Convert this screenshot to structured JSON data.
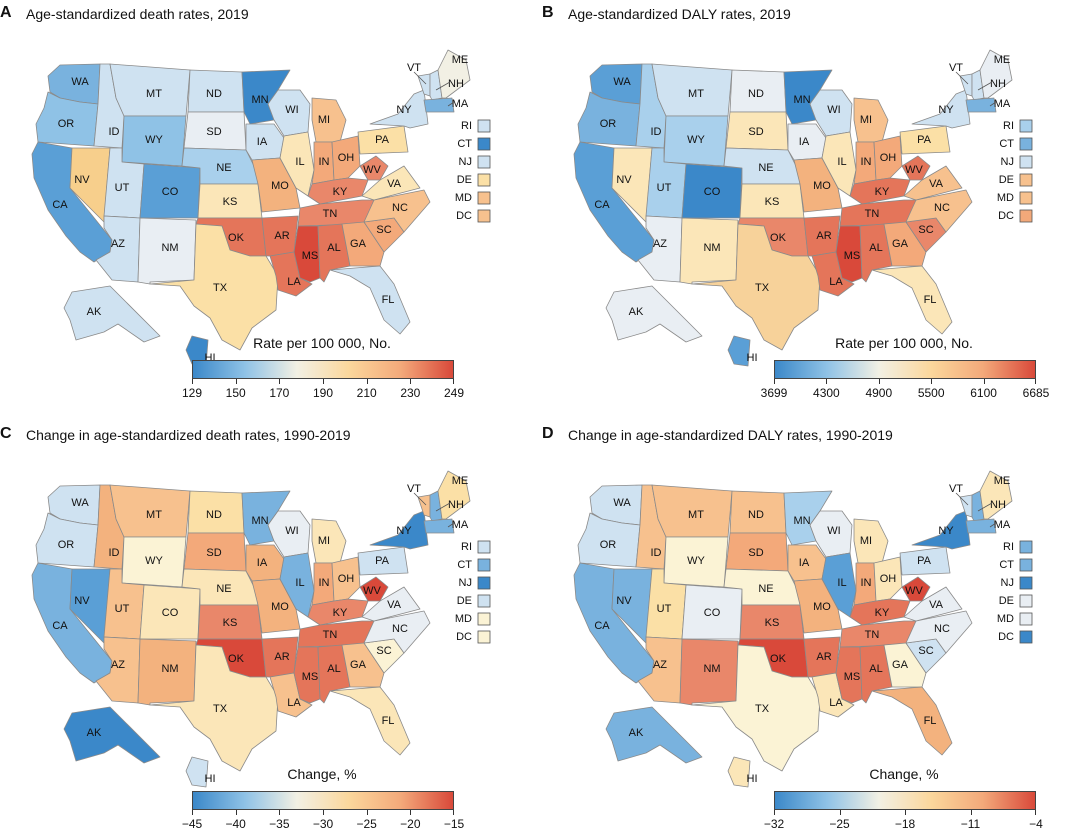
{
  "figure": {
    "panels": [
      {
        "id": "A",
        "letter": "A",
        "title": "Age-standardized death rates, 2019",
        "legend_title": "Rate per 100 000, No.",
        "ticks": [
          "129",
          "150",
          "170",
          "190",
          "210",
          "230",
          "249"
        ],
        "colors": {
          "WA": "#79b2de",
          "OR": "#8fc2e6",
          "CA": "#5a9fd6",
          "NV": "#f7cf8c",
          "ID": "#cfe2f1",
          "MT": "#cfe2f1",
          "WY": "#8fc2e6",
          "UT": "#cfe2f1",
          "AZ": "#cfe2f1",
          "CO": "#5a9fd6",
          "NM": "#e9eef3",
          "ND": "#cfe2f1",
          "SD": "#e9eef3",
          "NE": "#a9d0ec",
          "KS": "#fbe6b8",
          "OK": "#e4755a",
          "TX": "#fbe0a6",
          "MN": "#3b88c9",
          "IA": "#cfe2f1",
          "MO": "#f3b27e",
          "AR": "#e4755a",
          "LA": "#e4755a",
          "WI": "#cfe2f1",
          "IL": "#fbe6b8",
          "MI": "#f7c18e",
          "IN": "#f3a97a",
          "OH": "#f3a97a",
          "KY": "#e9876a",
          "TN": "#e9876a",
          "MS": "#d9493a",
          "AL": "#e4755a",
          "GA": "#f3a97a",
          "FL": "#cfe2f1",
          "SC": "#f3a97a",
          "NC": "#f7c18e",
          "VA": "#fbe6b8",
          "WV": "#e9876a",
          "PA": "#fbe0a6",
          "NY": "#cfe2f1",
          "VT": "#cfe2f1",
          "NH": "#cfe2f1",
          "ME": "#f2f0e4",
          "MA": "#79b2de",
          "AK": "#cfe2f1",
          "HI": "#3b88c9",
          "RI": "#cfe2f1",
          "CT": "#3b88c9",
          "NJ": "#cfe2f1",
          "DE": "#fbe0a6",
          "MD": "#f7c18e",
          "DC": "#f7c18e"
        }
      },
      {
        "id": "B",
        "letter": "B",
        "title": "Age-standardized DALY rates, 2019",
        "legend_title": "Rate per 100 000, No.",
        "ticks": [
          "3699",
          "4300",
          "4900",
          "5500",
          "6100",
          "6685"
        ],
        "colors": {
          "WA": "#5a9fd6",
          "OR": "#79b2de",
          "CA": "#5a9fd6",
          "NV": "#fbe6b8",
          "ID": "#a9d0ec",
          "MT": "#cfe2f1",
          "WY": "#a9d0ec",
          "UT": "#a9d0ec",
          "AZ": "#e9eef3",
          "CO": "#3b88c9",
          "NM": "#fbe6b8",
          "ND": "#e9eef3",
          "SD": "#fbe6b8",
          "NE": "#cfe2f1",
          "KS": "#fbe6b8",
          "OK": "#e9876a",
          "TX": "#f7d29a",
          "MN": "#3b88c9",
          "IA": "#e9eef3",
          "MO": "#f3b27e",
          "AR": "#e4755a",
          "LA": "#e4755a",
          "WI": "#cfe2f1",
          "IL": "#fbe6b8",
          "MI": "#f7c18e",
          "IN": "#f3a97a",
          "OH": "#f3a97a",
          "KY": "#e4755a",
          "TN": "#e4755a",
          "MS": "#d9493a",
          "AL": "#e4755a",
          "GA": "#f3a97a",
          "FL": "#fbe6b8",
          "SC": "#e9876a",
          "NC": "#f7c18e",
          "VA": "#f7c18e",
          "WV": "#e4755a",
          "PA": "#fbe0a6",
          "NY": "#cfe2f1",
          "VT": "#cfe2f1",
          "NH": "#cfe2f1",
          "ME": "#e9eef3",
          "MA": "#79b2de",
          "AK": "#e9eef3",
          "HI": "#5a9fd6",
          "RI": "#a9d0ec",
          "CT": "#79b2de",
          "NJ": "#cfe2f1",
          "DE": "#f7c18e",
          "MD": "#f7c18e",
          "DC": "#f3a97a"
        }
      },
      {
        "id": "C",
        "letter": "C",
        "title": "Change in age-standardized death rates, 1990-2019",
        "legend_title": "Change, %",
        "ticks": [
          "−45",
          "−40",
          "−35",
          "−30",
          "−25",
          "−20",
          "−15"
        ],
        "colors": {
          "WA": "#cfe2f1",
          "OR": "#cfe2f1",
          "CA": "#79b2de",
          "NV": "#5a9fd6",
          "ID": "#f3b27e",
          "MT": "#f7c18e",
          "WY": "#fbf3d5",
          "UT": "#f7c18e",
          "AZ": "#f7c18e",
          "CO": "#fbe6b8",
          "NM": "#f3b27e",
          "ND": "#fbe0a6",
          "SD": "#f3a97a",
          "NE": "#fbe6b8",
          "KS": "#e9876a",
          "OK": "#d9493a",
          "TX": "#fbe6b8",
          "MN": "#79b2de",
          "IA": "#f3b27e",
          "MO": "#f3b27e",
          "AR": "#e4755a",
          "LA": "#f7c18e",
          "WI": "#e9eef3",
          "IL": "#79b2de",
          "MI": "#fbe6b8",
          "IN": "#f3a97a",
          "OH": "#f7c18e",
          "KY": "#e9876a",
          "TN": "#e4755a",
          "MS": "#e4755a",
          "AL": "#e4755a",
          "GA": "#f7c18e",
          "FL": "#fbe6b8",
          "SC": "#fbf3d5",
          "NC": "#e9eef3",
          "VA": "#e9eef3",
          "WV": "#d9493a",
          "PA": "#cfe2f1",
          "NY": "#3b88c9",
          "VT": "#f7c18e",
          "NH": "#79b2de",
          "ME": "#fbe0a6",
          "MA": "#79b2de",
          "AK": "#3b88c9",
          "HI": "#cfe2f1",
          "RI": "#cfe2f1",
          "CT": "#79b2de",
          "NJ": "#3b88c9",
          "DE": "#cfe2f1",
          "MD": "#fbf3d5",
          "DC": "#fbf3d5"
        }
      },
      {
        "id": "D",
        "letter": "D",
        "title": "Change in age-standardized DALY rates, 1990-2019",
        "legend_title": "Change, %",
        "ticks": [
          "−32",
          "−25",
          "−18",
          "−11",
          "−4"
        ],
        "colors": {
          "WA": "#cfe2f1",
          "OR": "#cfe2f1",
          "CA": "#79b2de",
          "NV": "#79b2de",
          "ID": "#f7c18e",
          "MT": "#f7c18e",
          "WY": "#fbf3d5",
          "UT": "#fbe0a6",
          "AZ": "#f7c18e",
          "CO": "#e9eef3",
          "NM": "#e9876a",
          "ND": "#f7c18e",
          "SD": "#f3a97a",
          "NE": "#fbf3d5",
          "KS": "#e9876a",
          "OK": "#d9493a",
          "TX": "#fbf3d5",
          "MN": "#a9d0ec",
          "IA": "#f7c18e",
          "MO": "#f3b27e",
          "AR": "#e4755a",
          "LA": "#fbe6b8",
          "WI": "#e9eef3",
          "IL": "#5a9fd6",
          "MI": "#fbe6b8",
          "IN": "#f3a97a",
          "OH": "#fbe6b8",
          "KY": "#e4755a",
          "TN": "#e9876a",
          "MS": "#e4755a",
          "AL": "#e4755a",
          "GA": "#fbf3d5",
          "FL": "#f3b27e",
          "SC": "#cfe2f1",
          "NC": "#e9eef3",
          "VA": "#e9eef3",
          "WV": "#d9493a",
          "PA": "#cfe2f1",
          "NY": "#3b88c9",
          "VT": "#cfe2f1",
          "NH": "#79b2de",
          "ME": "#fbe6b8",
          "MA": "#79b2de",
          "AK": "#79b2de",
          "HI": "#fbe6b8",
          "RI": "#79b2de",
          "CT": "#79b2de",
          "NJ": "#3b88c9",
          "DE": "#e9eef3",
          "MD": "#e9eef3",
          "DC": "#3b88c9"
        }
      }
    ],
    "colorbar_stops": [
      "#3b88c9",
      "#8fc2e6",
      "#f2f0e4",
      "#fbd79c",
      "#f3a97a",
      "#d9493a"
    ],
    "small_states": [
      "RI",
      "CT",
      "NJ",
      "DE",
      "MD",
      "DC"
    ],
    "map_labels": {
      "WA": "WA",
      "OR": "OR",
      "CA": "CA",
      "NV": "NV",
      "ID": "ID",
      "MT": "MT",
      "WY": "WY",
      "UT": "UT",
      "AZ": "AZ",
      "CO": "CO",
      "NM": "NM",
      "ND": "ND",
      "SD": "SD",
      "NE": "NE",
      "KS": "KS",
      "OK": "OK",
      "TX": "TX",
      "MN": "MN",
      "IA": "IA",
      "MO": "MO",
      "AR": "AR",
      "LA": "LA",
      "WI": "WI",
      "IL": "IL",
      "MI": "MI",
      "IN": "IN",
      "OH": "OH",
      "KY": "KY",
      "TN": "TN",
      "MS": "MS",
      "AL": "AL",
      "GA": "GA",
      "FL": "FL",
      "SC": "SC",
      "NC": "NC",
      "VA": "VA",
      "WV": "WV",
      "PA": "PA",
      "NY": "NY",
      "VT": "VT",
      "NH": "NH",
      "ME": "ME",
      "MA": "MA",
      "AK": "AK",
      "HI": "HI"
    }
  }
}
